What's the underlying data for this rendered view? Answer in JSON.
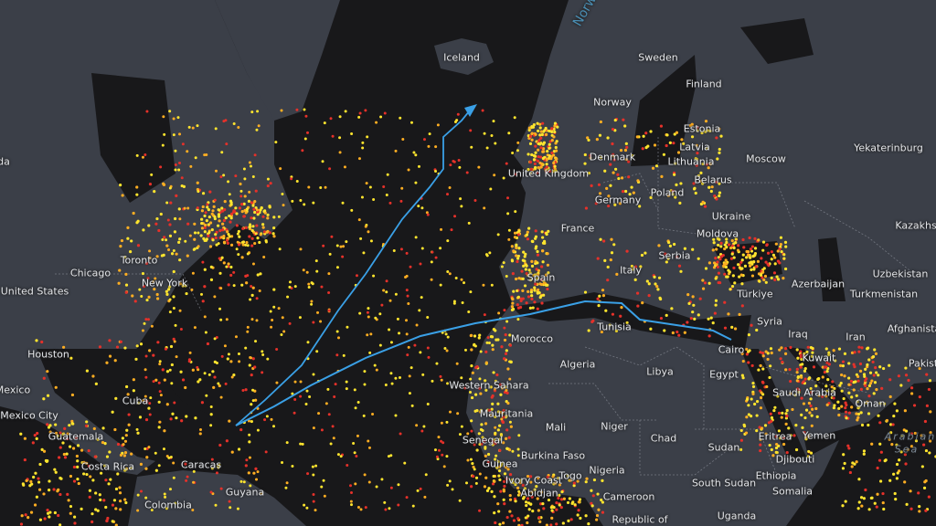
{
  "map": {
    "colors": {
      "ocean": "#18181a",
      "land": "#3b3f48",
      "border": "#8a8f99",
      "route": "#3aa0e6",
      "dot_yellow": "#ffe52e",
      "dot_orange": "#ffae22",
      "dot_red": "#e5312a"
    },
    "ocean_labels": [
      "Norw"
    ],
    "sea_labels": [
      "Arabian",
      "Sea"
    ],
    "labels": [
      "Iceland",
      "Sweden",
      "Finland",
      "Norway",
      "Estonia",
      "Latvia",
      "Lithuania",
      "Denmark",
      "United Kingdom",
      "Moscow",
      "Yekaterinburg",
      "Belarus",
      "Poland",
      "Germany",
      "Ukraine",
      "Moldova",
      "France",
      "Kazakhs",
      "Serbia",
      "Italy",
      "Spain",
      "Uzbekistan",
      "Turkmenistan",
      "Afghanista",
      "Azerbaijan",
      "Türkiye",
      "Syria",
      "Iraq",
      "Iran",
      "Kuwait",
      "Pakist",
      "Tunisia",
      "Morocco",
      "Algeria",
      "Libya",
      "Egypt",
      "Cairo",
      "Saudi Arabia",
      "Oman",
      "Western Sahara",
      "Mauritania",
      "Mali",
      "Niger",
      "Chad",
      "Sudan",
      "Eritrea",
      "Yemen",
      "Djibouti",
      "Senegal",
      "Guinea",
      "Burkina Faso",
      "Ivory Coast",
      "Togo",
      "Nigeria",
      "Abidjan",
      "Cameroon",
      "South Sudan",
      "Ethiopia",
      "Somalia",
      "Republic of",
      "Uganda",
      "Chicago",
      "Toronto",
      "New York",
      "United States",
      "Houston",
      "Mexico",
      "Mexico City",
      "Cuba",
      "Guatemala",
      "Costa Rica",
      "Caracas",
      "Guyana",
      "Colombia",
      "da"
    ]
  }
}
